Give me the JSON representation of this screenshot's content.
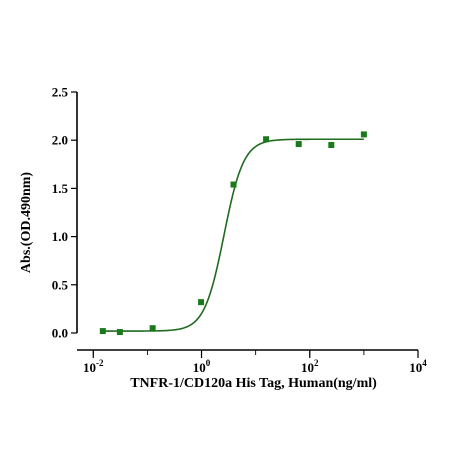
{
  "chart_data": {
    "type": "scatter",
    "title": "",
    "xlabel": "TNFR-1/CD120a His Tag, Human(ng/ml)",
    "ylabel": "Abs.(OD.490nm)",
    "x_scale": "log10",
    "xlim": [
      0.005,
      10000
    ],
    "ylim": [
      0,
      2.5
    ],
    "x_ticks": [
      {
        "value": 0.01,
        "base": "10",
        "exp": "-2"
      },
      {
        "value": 1,
        "base": "10",
        "exp": "0"
      },
      {
        "value": 100,
        "base": "10",
        "exp": "2"
      },
      {
        "value": 10000,
        "base": "10",
        "exp": "4"
      }
    ],
    "y_ticks": [
      "0.0",
      "0.5",
      "1.0",
      "1.5",
      "2.0",
      "2.5"
    ],
    "grid": false,
    "legend": "none",
    "series": [
      {
        "marker_color": "#1a7a1a",
        "line_color": "#1f6b1f",
        "x": [
          0.015,
          0.031,
          0.125,
          0.98,
          3.9,
          15.6,
          62.5,
          250,
          1000
        ],
        "y": [
          0.02,
          0.01,
          0.05,
          0.32,
          1.54,
          2.01,
          1.96,
          1.95,
          2.06
        ]
      }
    ],
    "fit": {
      "type": "4PL",
      "bottom": 0.02,
      "top": 2.01,
      "ec50": 2.6,
      "hill": 2.4
    }
  }
}
